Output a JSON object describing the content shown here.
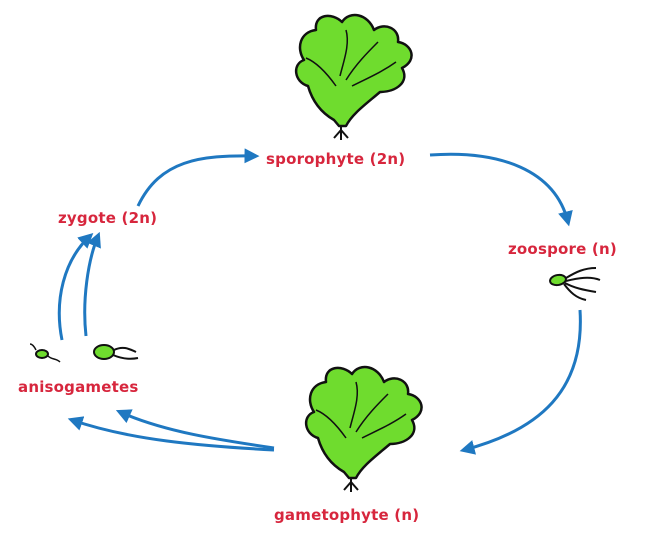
{
  "diagram": {
    "label_color": "#d7263d",
    "arrow_color": "#1f78c1",
    "thallus_color": "#6fdc2e",
    "outline_color": "#111111",
    "stages": {
      "sporophyte": "sporophyte (2n)",
      "zoospore": "zoospore (n)",
      "zygote": "zygote (2n)",
      "anisogametes": "anisogametes",
      "gametophyte": "gametophyte (n)"
    },
    "icons": {
      "sporophyte": "sea-lettuce-thallus",
      "gametophyte": "sea-lettuce-thallus",
      "zoospore": "flagellated-spore",
      "anisogametes": "flagellated-gametes"
    }
  }
}
